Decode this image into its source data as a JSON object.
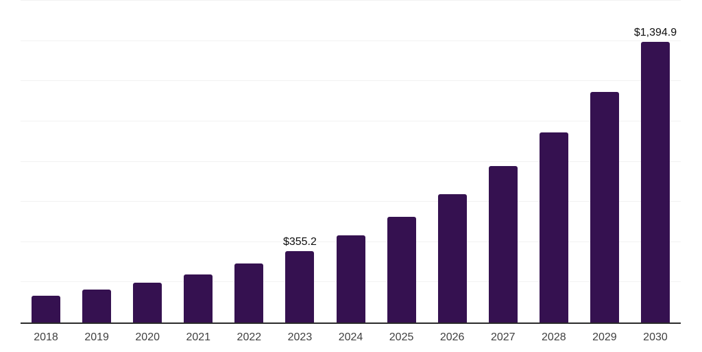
{
  "chart_data": {
    "type": "bar",
    "title": "",
    "xlabel": "",
    "ylabel": "",
    "legend_position": "none",
    "grid": "horizontal",
    "ylim": [
      0,
      1600
    ],
    "grid_step": 200,
    "categories": [
      "2018",
      "2019",
      "2020",
      "2021",
      "2022",
      "2023",
      "2024",
      "2025",
      "2026",
      "2027",
      "2028",
      "2029",
      "2030"
    ],
    "values": [
      133.7,
      162.5,
      197.6,
      240.3,
      292.1,
      355.2,
      431.9,
      525.1,
      638.4,
      776.2,
      943.7,
      1147.5,
      1394.9
    ],
    "points": [
      {
        "year": "2018",
        "value": 133.7
      },
      {
        "year": "2019",
        "value": 162.5
      },
      {
        "year": "2020",
        "value": 197.6
      },
      {
        "year": "2021",
        "value": 240.3
      },
      {
        "year": "2022",
        "value": 292.1
      },
      {
        "year": "2023",
        "value": 355.2,
        "label": "$355.2"
      },
      {
        "year": "2024",
        "value": 431.9
      },
      {
        "year": "2025",
        "value": 525.1
      },
      {
        "year": "2026",
        "value": 638.4
      },
      {
        "year": "2027",
        "value": 776.2
      },
      {
        "year": "2028",
        "value": 943.7
      },
      {
        "year": "2029",
        "value": 1147.5
      },
      {
        "year": "2030",
        "value": 1394.9,
        "label": "$1,394.9"
      }
    ],
    "colors": {
      "bar": "#351150",
      "grid": "#f2f2f2",
      "axis": "#2a2a2a",
      "tick_text": "#3f3f3f",
      "data_label_text": "#0d0d0d",
      "background": "#ffffff"
    }
  }
}
